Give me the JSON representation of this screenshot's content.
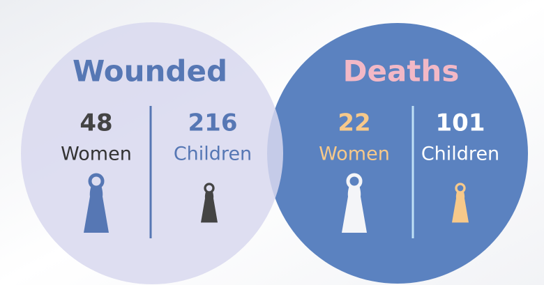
{
  "wounded": {
    "title": "Wounded",
    "women": {
      "value": 48,
      "label": "Women"
    },
    "children": {
      "value": 216,
      "label": "Children"
    }
  },
  "deaths": {
    "title": "Deaths",
    "women": {
      "value": 22,
      "label": "Women"
    },
    "children": {
      "value": 101,
      "label": "Children"
    }
  }
}
